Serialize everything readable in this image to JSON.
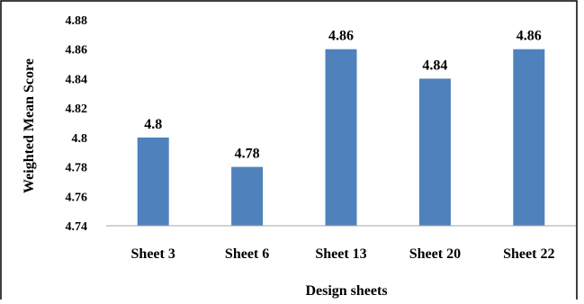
{
  "chart_data": {
    "type": "bar",
    "categories": [
      "Sheet 3",
      "Sheet 6",
      "Sheet 13",
      "Sheet 20",
      "Sheet 22"
    ],
    "values": [
      4.8,
      4.78,
      4.86,
      4.84,
      4.86
    ],
    "data_labels": [
      "4.8",
      "4.78",
      "4.86",
      "4.84",
      "4.86"
    ],
    "title": "",
    "xlabel": "Design sheets",
    "ylabel": "Weighted Mean Score",
    "ylim": [
      4.74,
      4.88
    ],
    "yticks": [
      4.74,
      4.76,
      4.78,
      4.8,
      4.82,
      4.84,
      4.86,
      4.88
    ],
    "ytick_labels": [
      "4.74",
      "4.76",
      "4.78",
      "4.8",
      "4.82",
      "4.84",
      "4.86",
      "4.88"
    ],
    "grid": false,
    "legend": "none",
    "bar_color": "#4f81bd"
  }
}
